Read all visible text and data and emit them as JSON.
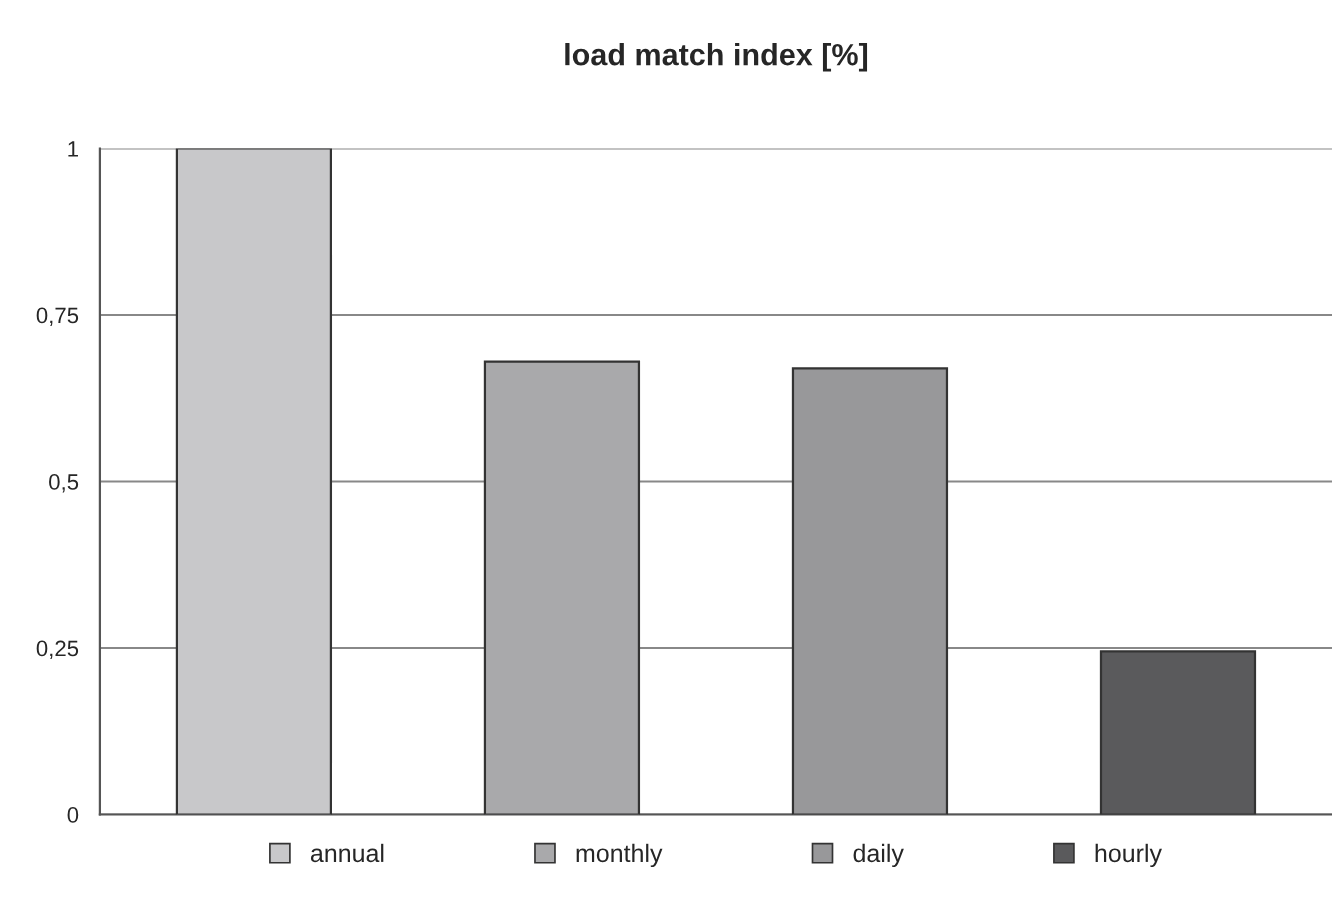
{
  "chart_data": {
    "type": "bar",
    "title": "load match index [%]",
    "categories": [
      null,
      null,
      null,
      null
    ],
    "series": [
      {
        "name": "annual",
        "color": "#c8c8ca",
        "values": [
          1,
          null,
          null,
          null
        ]
      },
      {
        "name": "monthly",
        "color": "#a9a9ab",
        "values": [
          null,
          0.68,
          null,
          null
        ]
      },
      {
        "name": "daily",
        "color": "#98989a",
        "values": [
          null,
          null,
          0.67,
          null
        ]
      },
      {
        "name": "hourly",
        "color": "#5a5a5c",
        "values": [
          null,
          null,
          null,
          0.245
        ]
      }
    ],
    "ylim": [
      0,
      1
    ],
    "yticks": [
      0,
      {
        "value": 0.25,
        "label": "0,25"
      },
      {
        "value": 0.5,
        "label": "0,5"
      },
      {
        "value": 0.75,
        "label": "0,75"
      },
      1
    ],
    "grid": "y",
    "legend": "bottom"
  }
}
